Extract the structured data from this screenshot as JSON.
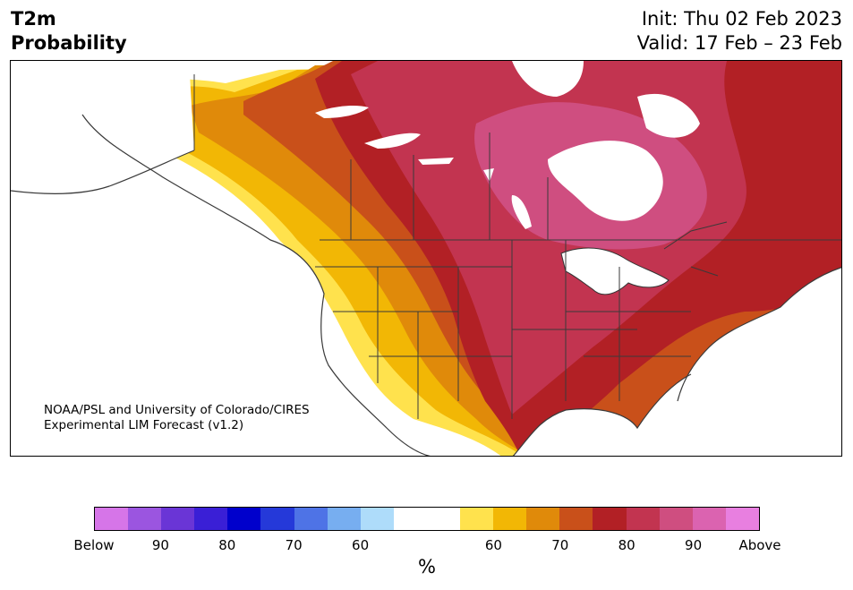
{
  "title": {
    "line1": "T2m",
    "line2": "Probability"
  },
  "init": "Init: Thu 02 Feb 2023",
  "valid": "Valid: 17 Feb – 23 Feb",
  "credit": {
    "line1": "NOAA/PSL and University of Colorado/CIRES",
    "line2": "Experimental LIM Forecast (v1.2)"
  },
  "colorbar": {
    "colors": [
      "#d675e8",
      "#9b55e0",
      "#6a35d6",
      "#3a1fd6",
      "#0000cc",
      "#2539d9",
      "#4e73e6",
      "#77aef0",
      "#aedcfa",
      "#ffffff",
      "#ffffff",
      "#ffe24d",
      "#f2b705",
      "#e08a0a",
      "#c9501a",
      "#b22025",
      "#c23450",
      "#cf4e80",
      "#db63b0",
      "#e87fe0"
    ],
    "labels": [
      "Below",
      "90",
      "80",
      "70",
      "60",
      "60",
      "70",
      "80",
      "90",
      "Above"
    ],
    "unit": "%"
  },
  "map_colors": {
    "p60": "#ffe24d",
    "p65": "#f2b705",
    "p70": "#e08a0a",
    "p75": "#c9501a",
    "p80": "#b22025",
    "p85": "#c23450",
    "p90": "#cf4e80",
    "below": "#4e73e6",
    "below2": "#77aef0"
  }
}
